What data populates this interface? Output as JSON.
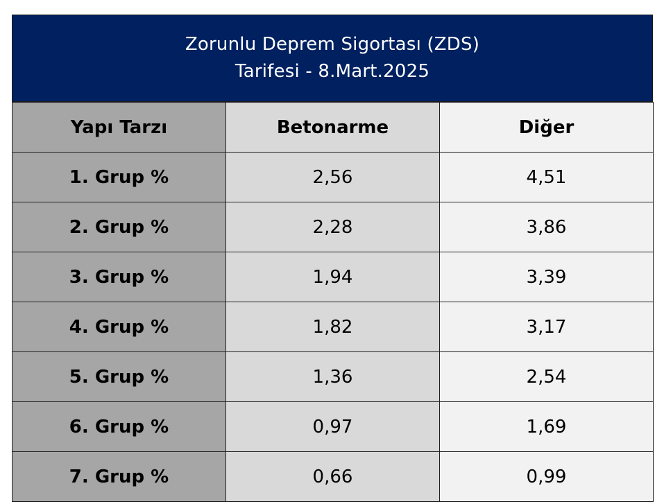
{
  "title": {
    "line1": "Zorunlu Deprem Sigortası (ZDS)",
    "line2": "Tarifesi - 8.Mart.2025"
  },
  "colors": {
    "header_bg": "#002060",
    "col1_bg": "#a6a6a6",
    "col2_bg": "#d9d9d9",
    "col3_bg": "#f2f2f2"
  },
  "table": {
    "headers": [
      "Yapı Tarzı",
      "Betonarme",
      "Diğer"
    ],
    "rows": [
      {
        "group": "1. Grup %",
        "betonarme": "2,56",
        "diger": "4,51"
      },
      {
        "group": "2. Grup %",
        "betonarme": "2,28",
        "diger": "3,86"
      },
      {
        "group": "3. Grup %",
        "betonarme": "1,94",
        "diger": "3,39"
      },
      {
        "group": "4. Grup %",
        "betonarme": "1,82",
        "diger": "3,17"
      },
      {
        "group": "5. Grup %",
        "betonarme": "1,36",
        "diger": "2,54"
      },
      {
        "group": "6. Grup %",
        "betonarme": "0,97",
        "diger": "1,69"
      },
      {
        "group": "7. Grup %",
        "betonarme": "0,66",
        "diger": "0,99"
      }
    ]
  }
}
